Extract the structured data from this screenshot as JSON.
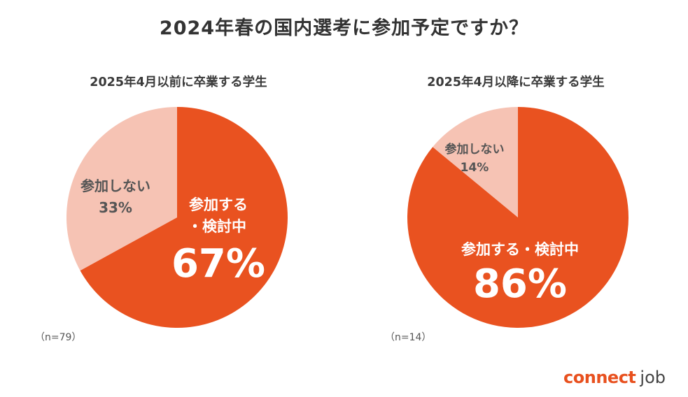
{
  "title": "2024年春の国内選考に参加予定ですか？",
  "colors": {
    "accent": "#E95220",
    "light": "#F6C3B4",
    "text_dark": "#555555",
    "text_light": "#FFFFFF"
  },
  "chart_data": [
    {
      "type": "pie",
      "title": "2025年4月以前に卒業する学生",
      "n_label": "（n=79）",
      "slices": [
        {
          "label_line1": "参加する",
          "label_line2": "・検討中",
          "percent_text": "67%",
          "value": 67
        },
        {
          "label": "参加しない",
          "percent_text": "33%",
          "value": 33
        }
      ]
    },
    {
      "type": "pie",
      "title": "2025年4月以降に卒業する学生",
      "n_label": "（n=14）",
      "slices": [
        {
          "label": "参加する・検討中",
          "percent_text": "86%",
          "value": 86
        },
        {
          "label": "参加しない",
          "percent_text": "14%",
          "value": 14
        }
      ]
    }
  ],
  "logo": {
    "part1": "connect",
    "part2": "job"
  }
}
